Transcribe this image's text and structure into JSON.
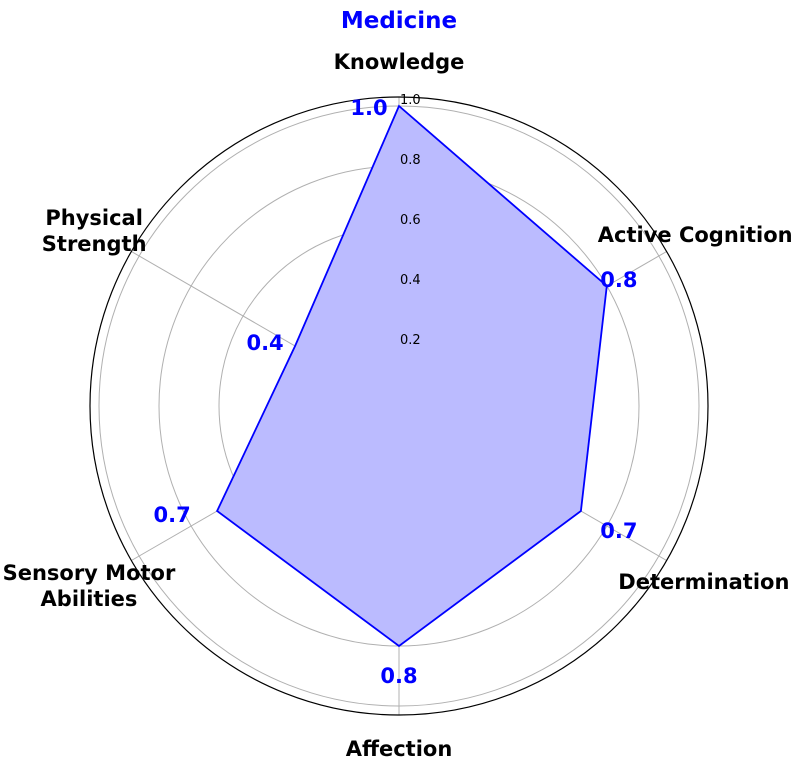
{
  "chart_data": {
    "type": "radar",
    "title": "Medicine",
    "categories": [
      "Knowledge",
      "Active Cognition",
      "Determination",
      "Affection",
      "Sensory Motor\nAbilities",
      "Physical\nStrength"
    ],
    "values": [
      1.0,
      0.8,
      0.7,
      0.8,
      0.7,
      0.4
    ],
    "value_labels": [
      "1.0",
      "0.8",
      "0.7",
      "0.8",
      "0.7",
      "0.4"
    ],
    "rlim": [
      0,
      1.0
    ],
    "rticks": [
      "0.2",
      "0.4",
      "0.6",
      "0.8",
      "1.0"
    ],
    "grid": true,
    "colors": {
      "series": "#0000ff",
      "fill": "#bbbbff",
      "title": "#0000ff",
      "grid": "#b0b0b0"
    }
  }
}
